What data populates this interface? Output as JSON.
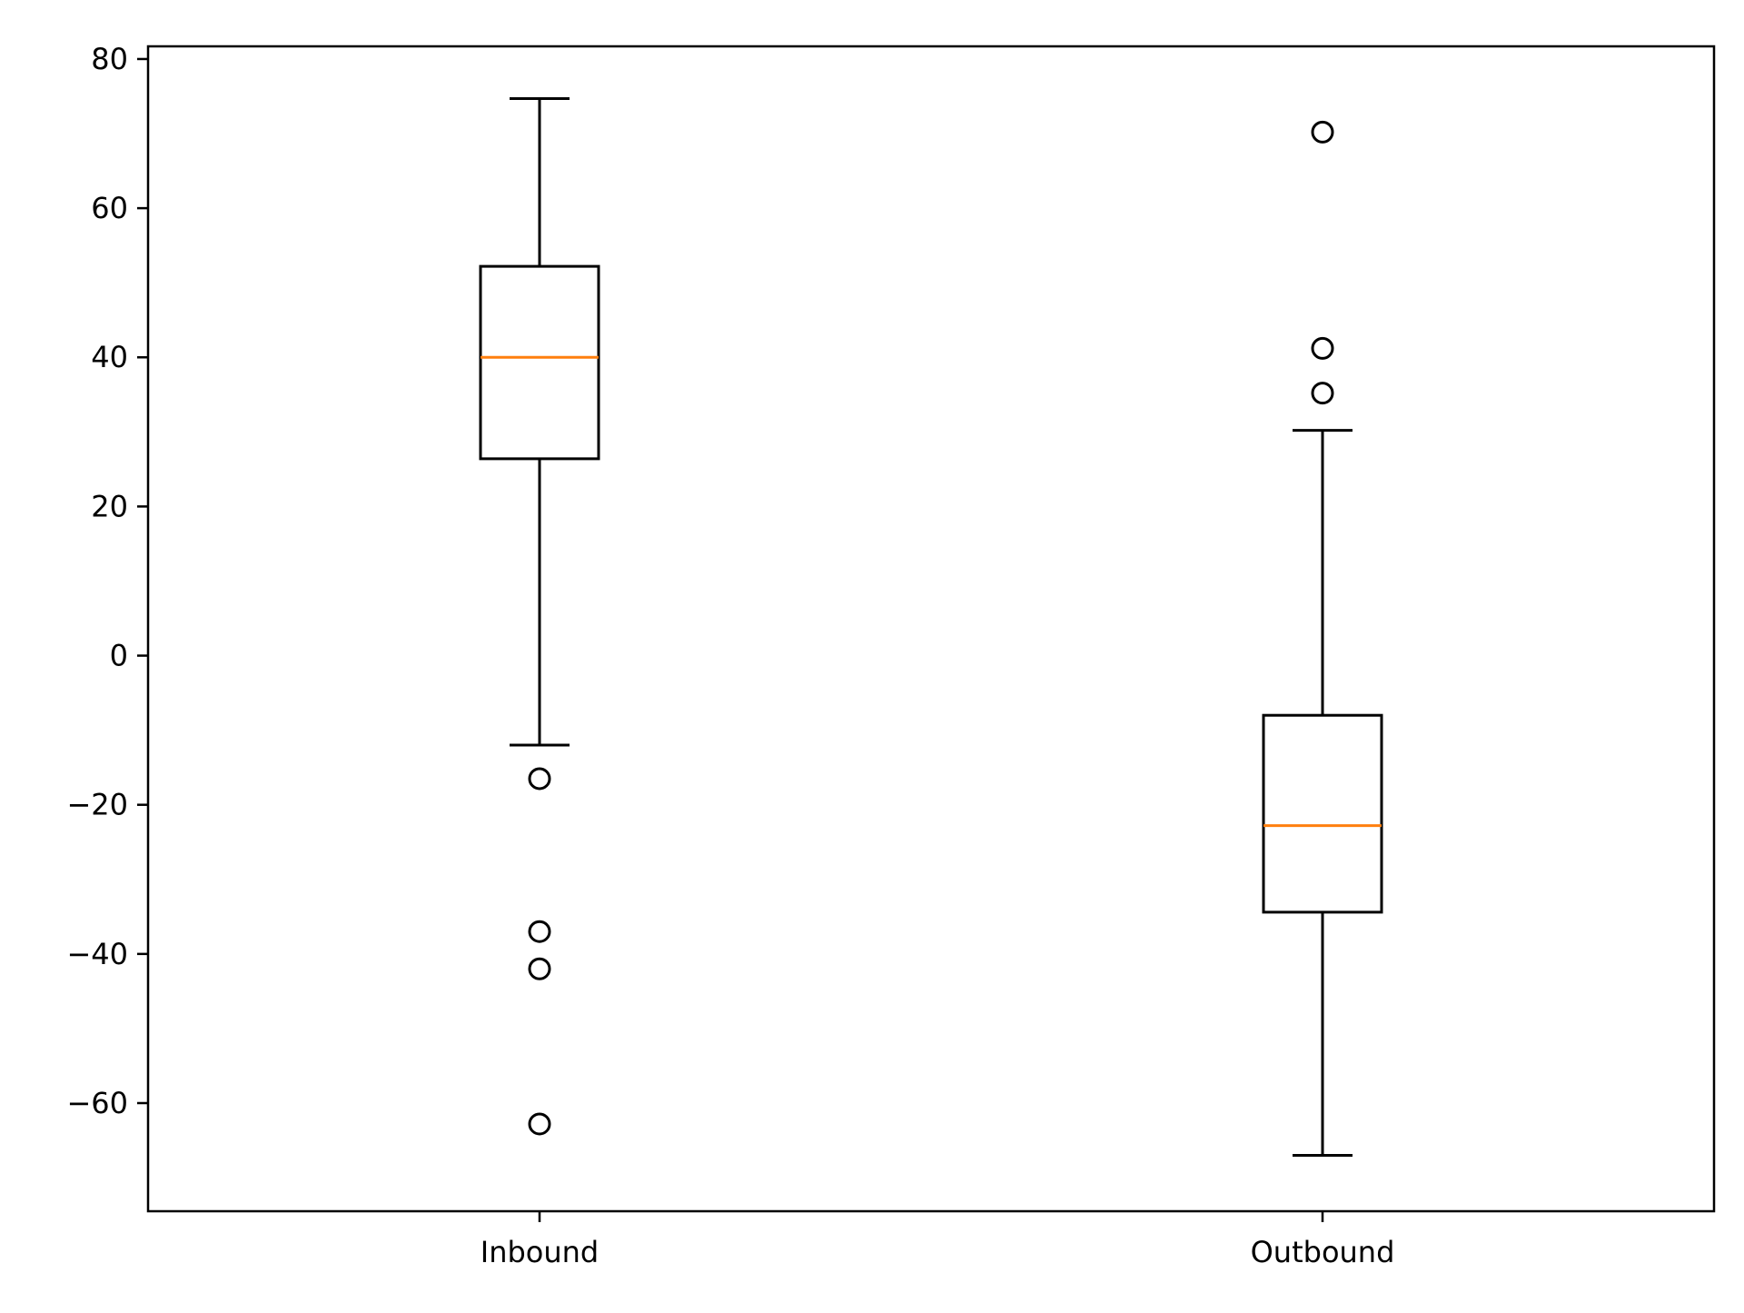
{
  "chart_data": {
    "type": "box",
    "title": "",
    "xlabel": "",
    "ylabel": "",
    "categories": [
      "Inbound",
      "Outbound"
    ],
    "ylim": [
      -74.5,
      81.7
    ],
    "yticks": [
      -60,
      -40,
      -20,
      0,
      20,
      40,
      60,
      80
    ],
    "ytick_labels": [
      "−60",
      "−40",
      "−20",
      "0",
      "20",
      "40",
      "60",
      "80"
    ],
    "grid": false,
    "boxes": [
      {
        "name": "Inbound",
        "whisker_low": -12.0,
        "q1": 26.4,
        "median": 40.0,
        "q3": 52.2,
        "whisker_high": 74.7,
        "outliers": [
          -16.5,
          -37.0,
          -42.0,
          -62.8
        ]
      },
      {
        "name": "Outbound",
        "whisker_low": -67.0,
        "q1": -34.4,
        "median": -22.8,
        "q3": -8.0,
        "whisker_high": 30.2,
        "outliers": [
          70.2,
          41.2,
          35.2
        ]
      }
    ],
    "colors": {
      "box": "#000000",
      "median": "#ff7f0e",
      "whisker": "#000000",
      "flier": "#000000"
    }
  }
}
